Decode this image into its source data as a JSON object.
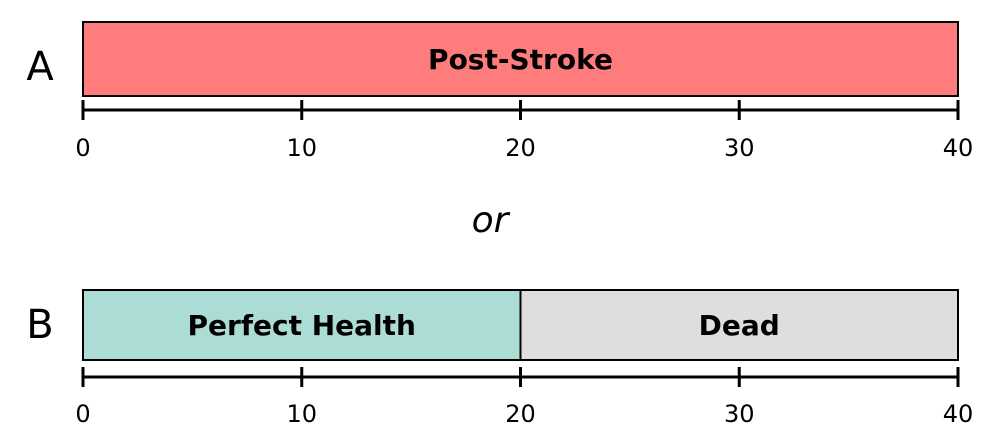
{
  "colors": {
    "post_stroke": "#ff7c7c",
    "perfect_health": "#abdcd6",
    "dead": "#dedede",
    "outline": "#000000"
  },
  "scenario_a": {
    "letter": "A",
    "segments": [
      {
        "label": "Post-Stroke",
        "start": 0,
        "end": 40,
        "color": "#ff7c7c"
      }
    ]
  },
  "connector": "or",
  "scenario_b": {
    "letter": "B",
    "segments": [
      {
        "label": "Perfect Health",
        "start": 0,
        "end": 20,
        "color": "#abdcd6"
      },
      {
        "label": "Dead",
        "start": 20,
        "end": 40,
        "color": "#dedede"
      }
    ]
  },
  "axis": {
    "min": 0,
    "max": 40,
    "ticks": [
      "0",
      "10",
      "20",
      "30",
      "40"
    ]
  }
}
